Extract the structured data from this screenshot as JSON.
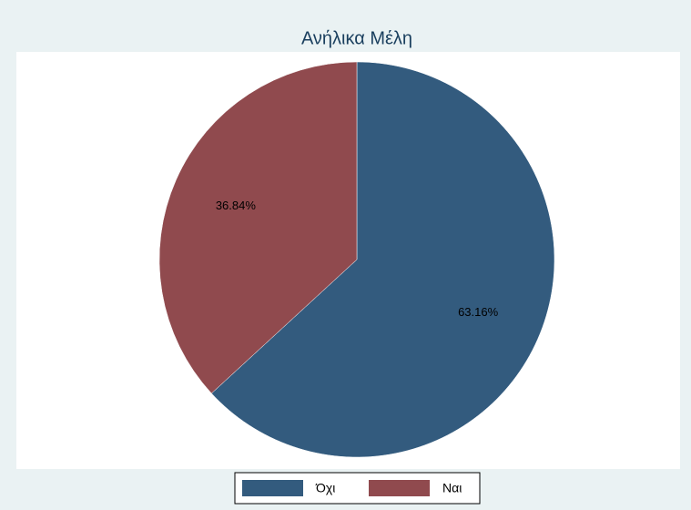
{
  "chart_data": {
    "type": "pie",
    "title": "Ανήλικα Μέλη",
    "categories": [
      "Όχι",
      "Ναι"
    ],
    "values": [
      63.16,
      36.84
    ],
    "value_labels": [
      "63.16%",
      "36.84%"
    ],
    "colors": [
      "#335b7e",
      "#904a4e"
    ],
    "legend": "bottom"
  }
}
